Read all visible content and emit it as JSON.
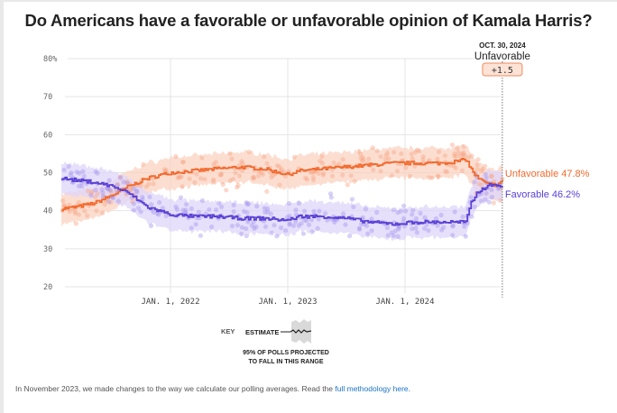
{
  "chart_data": {
    "type": "line",
    "title": "Do Americans have a favorable or unfavorable opinion of Kamala Harris?",
    "xlabel": "",
    "ylabel": "",
    "y_ticks": [
      "80%",
      "70",
      "60",
      "50",
      "40",
      "30",
      "20"
    ],
    "y_tick_values": [
      80,
      70,
      60,
      50,
      40,
      30,
      20
    ],
    "ylim": [
      20,
      80
    ],
    "x_ticks": [
      "JAN. 1, 2022",
      "JAN. 1, 2023",
      "JAN. 1, 2024"
    ],
    "x_tick_values": [
      2022.0,
      2023.0,
      2024.0
    ],
    "xlim": [
      2020.95,
      2024.83
    ],
    "grid": true,
    "series": [
      {
        "name": "Unfavorable",
        "color": "#f26a2e",
        "band_color": "#fbd3c2",
        "final_value": "47.8%",
        "x": [
          2021.07,
          2021.2,
          2021.35,
          2021.5,
          2021.65,
          2021.8,
          2022.0,
          2022.2,
          2022.4,
          2022.6,
          2022.8,
          2023.0,
          2023.1,
          2023.3,
          2023.5,
          2023.7,
          2023.9,
          2024.1,
          2024.3,
          2024.45,
          2024.52,
          2024.56,
          2024.62,
          2024.7,
          2024.78,
          2024.83
        ],
        "values": [
          40.5,
          41,
          42,
          44,
          46.5,
          48.5,
          50,
          50.5,
          51,
          51.5,
          51,
          49.5,
          50.5,
          51,
          51.5,
          52,
          52.5,
          52.5,
          52.5,
          53,
          53.5,
          51,
          48.5,
          47,
          46.8,
          47.8
        ]
      },
      {
        "name": "Favorable",
        "color": "#5a3fd6",
        "band_color": "#ddd6fa",
        "final_value": "46.2%",
        "x": [
          2021.07,
          2021.2,
          2021.35,
          2021.5,
          2021.65,
          2021.8,
          2022.0,
          2022.2,
          2022.4,
          2022.6,
          2022.8,
          2023.0,
          2023.1,
          2023.3,
          2023.5,
          2023.7,
          2023.9,
          2024.1,
          2024.3,
          2024.45,
          2024.52,
          2024.56,
          2024.62,
          2024.7,
          2024.78,
          2024.83
        ],
        "values": [
          48.5,
          48,
          47.5,
          46.5,
          44.5,
          41,
          39,
          38.5,
          38.5,
          38,
          38,
          37.5,
          38.5,
          38.5,
          38,
          37,
          36.5,
          37,
          37,
          37,
          37,
          42,
          45,
          46.5,
          47,
          46.2
        ]
      }
    ],
    "annotation": {
      "date": "OCT. 30, 2024",
      "leader": "Unfavorable",
      "margin": "+1.5"
    },
    "legend": {
      "position": "bottom-center",
      "key_label": "KEY",
      "estimate_label": "ESTIMATE",
      "range_note_line1": "95% OF POLLS PROJECTED",
      "range_note_line2": "TO FALL IN THIS RANGE"
    }
  },
  "end_labels": {
    "unfavorable": "Unfavorable 47.8%",
    "favorable": "Favorable 46.2%"
  },
  "footnote": {
    "text": "In November 2023, we made changes to the way we calculate our polling averages. Read the ",
    "link_text": "full methodology here",
    "suffix": "."
  }
}
